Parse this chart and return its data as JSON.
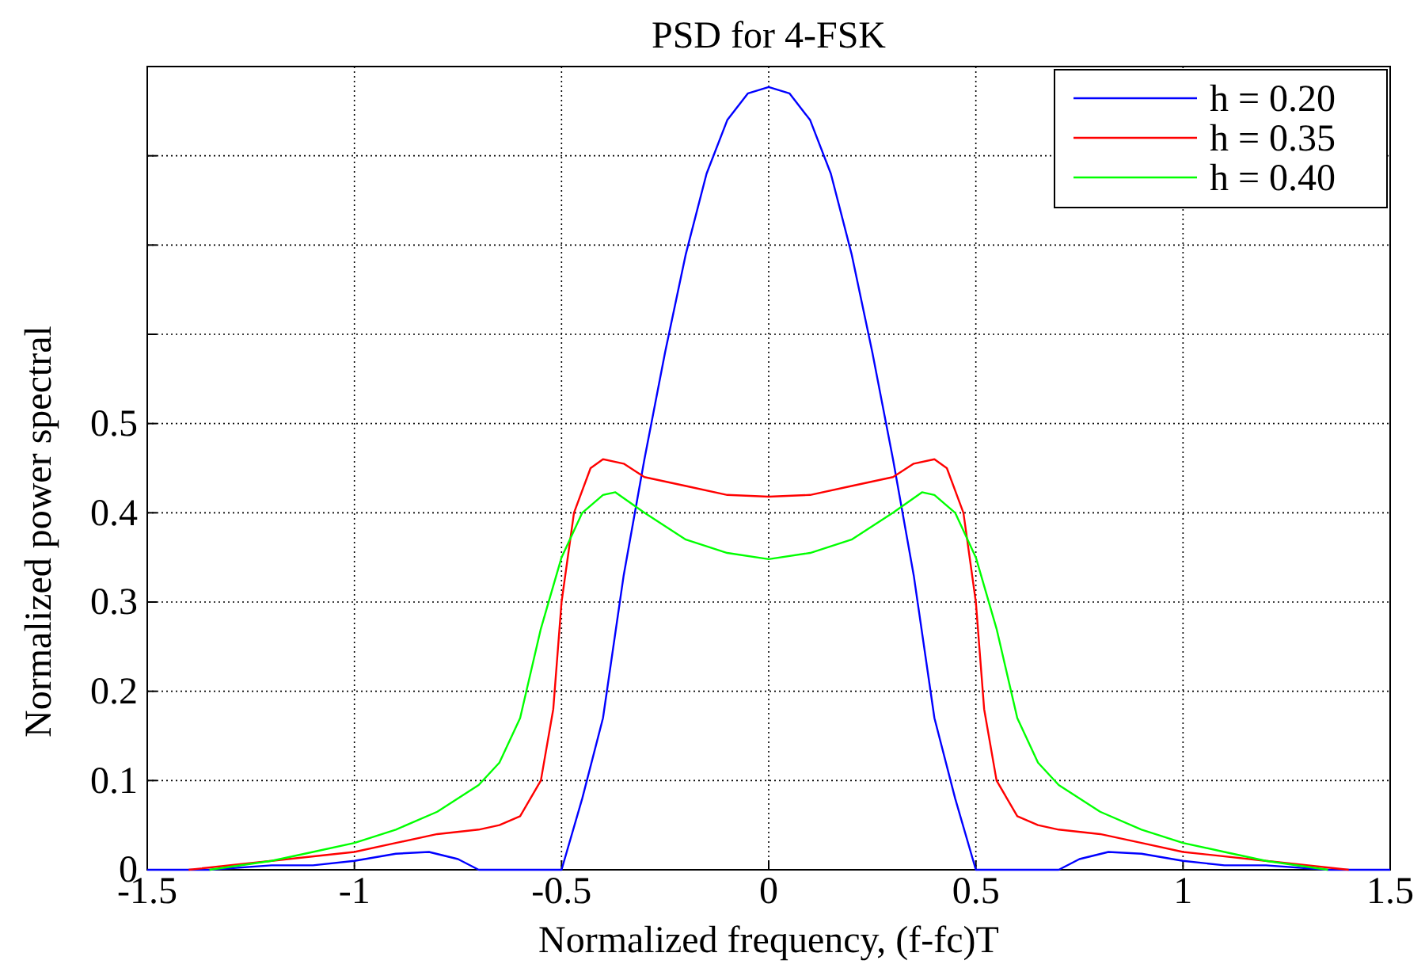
{
  "chart_data": {
    "type": "line",
    "title": "PSD for 4-FSK",
    "xlabel": "Normalized frequency, (f-fc)T",
    "ylabel": "Normalized power spectral",
    "xlim": [
      -1.5,
      1.5
    ],
    "xticks": [
      -1.5,
      -1,
      -0.5,
      0,
      0.5,
      1,
      1.5
    ],
    "ylim": [
      0,
      0.9
    ],
    "yticks": [
      0,
      0.1,
      0.2,
      0.3,
      0.4,
      0.5,
      {
        "value": 0.6,
        "label": null
      },
      {
        "value": 0.7,
        "label": null
      },
      {
        "value": 0.8,
        "label": null
      },
      {
        "value": 0.9,
        "label": null
      }
    ],
    "grid": true,
    "legend": "top right",
    "line_style": "solid",
    "marker": "none",
    "series": [
      {
        "name": "h = 0.20",
        "color": "#0000ff",
        "x": [
          -1.5,
          -1.35,
          -1.2,
          -1.1,
          -1,
          -0.9,
          -0.82,
          -0.75,
          -0.7,
          -0.5,
          -0.45,
          -0.4,
          -0.35,
          -0.3,
          -0.25,
          -0.2,
          -0.15,
          -0.1,
          -0.05,
          0,
          0.05,
          0.1,
          0.15,
          0.2,
          0.25,
          0.3,
          0.35,
          0.4,
          0.45,
          0.5,
          0.7,
          0.75,
          0.82,
          0.9,
          1,
          1.1,
          1.2,
          1.35,
          1.5
        ],
        "values": [
          0,
          0,
          0.005,
          0.005,
          0.01,
          0.018,
          0.02,
          0.012,
          0,
          0,
          0.08,
          0.17,
          0.33,
          0.46,
          0.58,
          0.69,
          0.78,
          0.84,
          0.87,
          0.877,
          0.87,
          0.84,
          0.78,
          0.69,
          0.58,
          0.46,
          0.33,
          0.17,
          0.08,
          0,
          0,
          0.012,
          0.02,
          0.018,
          0.01,
          0.005,
          0.005,
          0,
          0
        ]
      },
      {
        "name": "h = 0.35",
        "color": "#ff0000",
        "x": [
          -1.4,
          -1.2,
          -1,
          -0.9,
          -0.8,
          -0.7,
          -0.65,
          -0.6,
          -0.55,
          -0.52,
          -0.5,
          -0.47,
          -0.43,
          -0.4,
          -0.35,
          -0.3,
          -0.2,
          -0.1,
          0,
          0.1,
          0.2,
          0.3,
          0.35,
          0.4,
          0.43,
          0.47,
          0.5,
          0.52,
          0.55,
          0.6,
          0.65,
          0.7,
          0.8,
          0.9,
          1,
          1.2,
          1.4
        ],
        "values": [
          0,
          0.01,
          0.02,
          0.03,
          0.04,
          0.045,
          0.05,
          0.06,
          0.1,
          0.18,
          0.3,
          0.4,
          0.45,
          0.46,
          0.455,
          0.44,
          0.43,
          0.42,
          0.418,
          0.42,
          0.43,
          0.44,
          0.455,
          0.46,
          0.45,
          0.4,
          0.3,
          0.18,
          0.1,
          0.06,
          0.05,
          0.045,
          0.04,
          0.03,
          0.02,
          0.01,
          0
        ]
      },
      {
        "name": "h = 0.40",
        "color": "#00ff00",
        "x": [
          -1.35,
          -1.2,
          -1.1,
          -1,
          -0.9,
          -0.8,
          -0.7,
          -0.65,
          -0.6,
          -0.55,
          -0.5,
          -0.45,
          -0.4,
          -0.37,
          -0.3,
          -0.2,
          -0.1,
          0,
          0.1,
          0.2,
          0.3,
          0.37,
          0.4,
          0.45,
          0.5,
          0.55,
          0.6,
          0.65,
          0.7,
          0.8,
          0.9,
          1,
          1.1,
          1.2,
          1.35
        ],
        "values": [
          0,
          0.01,
          0.02,
          0.03,
          0.045,
          0.065,
          0.095,
          0.12,
          0.17,
          0.27,
          0.35,
          0.4,
          0.42,
          0.423,
          0.4,
          0.37,
          0.355,
          0.348,
          0.355,
          0.37,
          0.4,
          0.423,
          0.42,
          0.4,
          0.35,
          0.27,
          0.17,
          0.12,
          0.095,
          0.065,
          0.045,
          0.03,
          0.02,
          0.01,
          0
        ]
      }
    ]
  }
}
